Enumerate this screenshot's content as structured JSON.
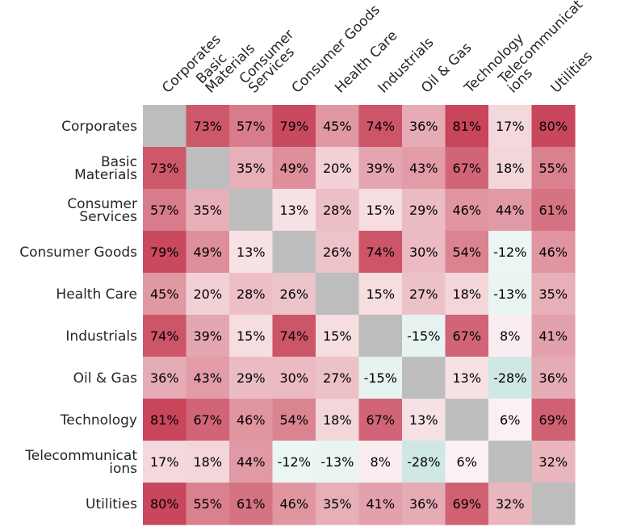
{
  "chart_data": {
    "type": "heatmap",
    "title": "",
    "xlabel": "",
    "ylabel": "",
    "value_unit": "%",
    "color_scale": {
      "negative": "#cfe8e4",
      "zero": "#ffffff",
      "positive": "#c53c52",
      "diagonal": "#bdbdbd",
      "max_abs": 85
    },
    "row_labels": [
      [
        "Corporates"
      ],
      [
        "Basic",
        "Materials"
      ],
      [
        "Consumer",
        "Services"
      ],
      [
        "Consumer Goods"
      ],
      [
        "Health Care"
      ],
      [
        "Industrials"
      ],
      [
        "Oil & Gas"
      ],
      [
        "Technology"
      ],
      [
        "Telecommunicat",
        "ions"
      ],
      [
        "Utilities"
      ]
    ],
    "col_labels": [
      [
        "Corporates"
      ],
      [
        "Basic",
        "Materials"
      ],
      [
        "Consumer",
        "Services"
      ],
      [
        "Consumer Goods"
      ],
      [
        "Health Care"
      ],
      [
        "Industrials"
      ],
      [
        "Oil & Gas"
      ],
      [
        "Technology"
      ],
      [
        "Telecommunicat",
        "ions"
      ],
      [
        "Utilities"
      ]
    ],
    "values": [
      [
        null,
        73,
        57,
        79,
        45,
        74,
        36,
        81,
        17,
        80
      ],
      [
        73,
        null,
        35,
        49,
        20,
        39,
        43,
        67,
        18,
        55
      ],
      [
        57,
        35,
        null,
        13,
        28,
        15,
        29,
        46,
        44,
        61
      ],
      [
        79,
        49,
        13,
        null,
        26,
        74,
        30,
        54,
        -12,
        46
      ],
      [
        45,
        20,
        28,
        26,
        null,
        15,
        27,
        18,
        -13,
        35
      ],
      [
        74,
        39,
        15,
        74,
        15,
        null,
        -15,
        67,
        8,
        41
      ],
      [
        36,
        43,
        29,
        30,
        27,
        -15,
        null,
        13,
        -28,
        36
      ],
      [
        81,
        67,
        46,
        54,
        18,
        67,
        13,
        null,
        6,
        69
      ],
      [
        17,
        18,
        44,
        -12,
        -13,
        8,
        -28,
        6,
        null,
        32
      ],
      [
        80,
        55,
        61,
        46,
        35,
        41,
        36,
        69,
        32,
        null
      ]
    ]
  }
}
